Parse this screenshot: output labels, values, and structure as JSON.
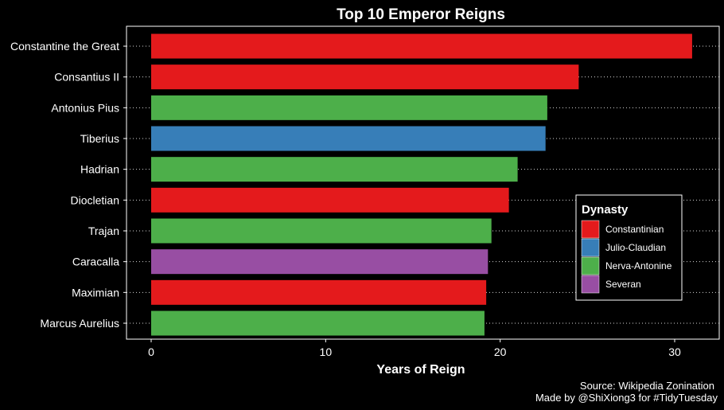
{
  "chart_data": {
    "type": "bar",
    "orientation": "horizontal",
    "title": "Top 10 Emperor Reigns",
    "xlabel": "Years of Reign",
    "ylabel": "",
    "xlim": [
      -1.5,
      32.5
    ],
    "xticks": [
      0,
      10,
      20,
      30
    ],
    "grid": "dotted horizontal gridlines",
    "categories": [
      "Constantine the Great",
      "Consantius II",
      "Antonius Pius",
      "Tiberius",
      "Hadrian",
      "Diocletian",
      "Trajan",
      "Caracalla",
      "Maximian",
      "Marcus Aurelius"
    ],
    "values": [
      31,
      24.5,
      22.7,
      22.6,
      21,
      20.5,
      19.5,
      19.3,
      19.2,
      19.1
    ],
    "dynasty": [
      "Constantinian",
      "Constantinian",
      "Nerva-Antonine",
      "Julio-Claudian",
      "Nerva-Antonine",
      "Constantinian",
      "Nerva-Antonine",
      "Severan",
      "Constantinian",
      "Nerva-Antonine"
    ],
    "legend": {
      "title": "Dynasty",
      "position": "right",
      "entries": [
        {
          "name": "Constantinian",
          "color": "#E41A1C"
        },
        {
          "name": "Julio-Claudian",
          "color": "#377EB8"
        },
        {
          "name": "Nerva-Antonine",
          "color": "#4DAF4A"
        },
        {
          "name": "Severan",
          "color": "#984EA3"
        }
      ]
    },
    "caption": [
      "Source: Wikipedia Zonination",
      "Made by @ShiXiong3 for #TidyTuesday"
    ]
  }
}
